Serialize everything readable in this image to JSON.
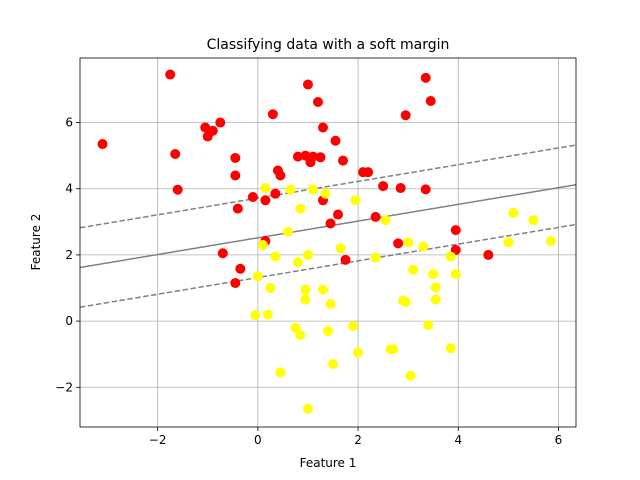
{
  "chart_data": {
    "type": "scatter",
    "title": "Classifying data with a soft margin",
    "xlabel": "Feature 1",
    "ylabel": "Feature 2",
    "xlim": [
      -3.55,
      6.35
    ],
    "ylim": [
      -3.2,
      7.95
    ],
    "xticks": [
      -2,
      0,
      2,
      4,
      6
    ],
    "yticks": [
      -2,
      0,
      2,
      4,
      6
    ],
    "grid": true,
    "colors": {
      "class_0": "#ff0000",
      "class_1": "#ffff00",
      "boundary": "#808080",
      "axis": "#000000"
    },
    "decision_boundary": {
      "solid": {
        "x": [
          -3.55,
          6.35
        ],
        "y": [
          1.62,
          4.12
        ]
      },
      "upper_margin": {
        "x": [
          -3.55,
          6.35
        ],
        "y": [
          2.82,
          5.32
        ]
      },
      "lower_margin": {
        "x": [
          -3.55,
          6.35
        ],
        "y": [
          0.42,
          2.92
        ]
      }
    },
    "series": [
      {
        "color": "#ff0000",
        "points": [
          [
            -3.1,
            5.35
          ],
          [
            -1.75,
            7.45
          ],
          [
            -1.65,
            5.05
          ],
          [
            -1.6,
            3.97
          ],
          [
            -1.05,
            5.85
          ],
          [
            -1.0,
            5.58
          ],
          [
            -0.9,
            5.75
          ],
          [
            -0.75,
            6.0
          ],
          [
            -0.7,
            2.05
          ],
          [
            -0.45,
            4.93
          ],
          [
            -0.45,
            4.4
          ],
          [
            -0.4,
            3.4
          ],
          [
            -0.35,
            1.58
          ],
          [
            -0.45,
            1.15
          ],
          [
            -0.1,
            3.75
          ],
          [
            0.15,
            3.65
          ],
          [
            0.15,
            2.42
          ],
          [
            0.3,
            6.25
          ],
          [
            0.35,
            3.85
          ],
          [
            0.4,
            4.55
          ],
          [
            0.45,
            4.4
          ],
          [
            0.8,
            4.97
          ],
          [
            0.95,
            5.0
          ],
          [
            1.0,
            7.15
          ],
          [
            1.05,
            4.8
          ],
          [
            1.1,
            4.97
          ],
          [
            1.2,
            6.62
          ],
          [
            1.25,
            4.95
          ],
          [
            1.3,
            3.65
          ],
          [
            1.3,
            5.85
          ],
          [
            1.45,
            2.95
          ],
          [
            1.55,
            5.45
          ],
          [
            1.6,
            3.22
          ],
          [
            1.7,
            4.85
          ],
          [
            1.75,
            1.85
          ],
          [
            2.1,
            4.5
          ],
          [
            2.2,
            4.5
          ],
          [
            2.35,
            3.15
          ],
          [
            2.5,
            4.08
          ],
          [
            2.8,
            2.35
          ],
          [
            2.85,
            4.02
          ],
          [
            2.95,
            6.22
          ],
          [
            3.35,
            7.35
          ],
          [
            3.35,
            3.98
          ],
          [
            3.45,
            6.65
          ],
          [
            3.95,
            2.75
          ],
          [
            3.95,
            2.15
          ],
          [
            4.6,
            2.0
          ]
        ]
      },
      {
        "color": "#ffff00",
        "points": [
          [
            -0.05,
            0.18
          ],
          [
            0.0,
            1.35
          ],
          [
            0.1,
            2.3
          ],
          [
            0.15,
            4.02
          ],
          [
            0.2,
            0.2
          ],
          [
            0.25,
            1.0
          ],
          [
            0.35,
            1.95
          ],
          [
            0.45,
            -1.55
          ],
          [
            0.6,
            2.7
          ],
          [
            0.65,
            3.97
          ],
          [
            0.75,
            -0.2
          ],
          [
            0.8,
            1.78
          ],
          [
            0.85,
            -0.42
          ],
          [
            0.85,
            3.4
          ],
          [
            0.95,
            0.65
          ],
          [
            0.95,
            0.95
          ],
          [
            1.0,
            2.0
          ],
          [
            1.0,
            -2.65
          ],
          [
            1.1,
            3.98
          ],
          [
            1.3,
            0.95
          ],
          [
            1.35,
            3.85
          ],
          [
            1.4,
            -0.3
          ],
          [
            1.45,
            0.52
          ],
          [
            1.5,
            -1.3
          ],
          [
            1.65,
            2.2
          ],
          [
            1.9,
            -0.15
          ],
          [
            1.95,
            3.65
          ],
          [
            2.0,
            -0.95
          ],
          [
            2.35,
            1.92
          ],
          [
            2.55,
            3.05
          ],
          [
            2.65,
            -0.85
          ],
          [
            2.7,
            -0.85
          ],
          [
            2.9,
            0.62
          ],
          [
            2.95,
            0.58
          ],
          [
            3.0,
            2.38
          ],
          [
            3.05,
            -1.65
          ],
          [
            3.1,
            1.55
          ],
          [
            3.3,
            2.25
          ],
          [
            3.4,
            -0.12
          ],
          [
            3.5,
            1.42
          ],
          [
            3.55,
            1.02
          ],
          [
            3.55,
            0.65
          ],
          [
            3.85,
            1.95
          ],
          [
            3.85,
            -0.82
          ],
          [
            3.95,
            1.42
          ],
          [
            5.0,
            2.38
          ],
          [
            5.1,
            3.27
          ],
          [
            5.5,
            3.05
          ],
          [
            5.85,
            2.42
          ]
        ]
      }
    ]
  }
}
